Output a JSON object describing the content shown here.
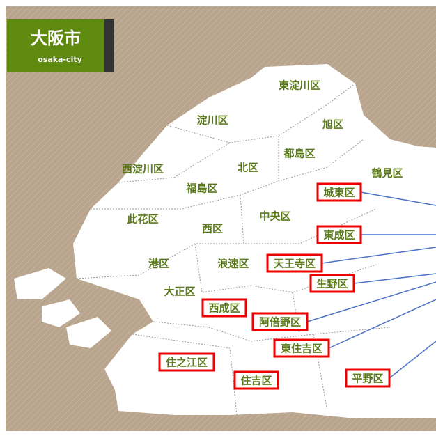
{
  "header": {
    "title": "大阪市",
    "subtitle": "osaka-city"
  },
  "wards": [
    {
      "name": "東淀川区"
    },
    {
      "name": "淀川区"
    },
    {
      "name": "旭区"
    },
    {
      "name": "都島区"
    },
    {
      "name": "西淀川区"
    },
    {
      "name": "北区"
    },
    {
      "name": "鶴見区"
    },
    {
      "name": "福島区"
    },
    {
      "name": "城東区",
      "highlighted": true
    },
    {
      "name": "此花区"
    },
    {
      "name": "中央区"
    },
    {
      "name": "西区"
    },
    {
      "name": "東成区",
      "highlighted": true
    },
    {
      "name": "港区"
    },
    {
      "name": "浪速区"
    },
    {
      "name": "天王寺区",
      "highlighted": true
    },
    {
      "name": "生野区",
      "highlighted": true
    },
    {
      "name": "大正区"
    },
    {
      "name": "西成区",
      "highlighted": true
    },
    {
      "name": "阿倍野区",
      "highlighted": true
    },
    {
      "name": "東住吉区",
      "highlighted": true
    },
    {
      "name": "住之江区",
      "highlighted": true
    },
    {
      "name": "住吉区",
      "highlighted": true
    },
    {
      "name": "平野区",
      "highlighted": true
    }
  ]
}
